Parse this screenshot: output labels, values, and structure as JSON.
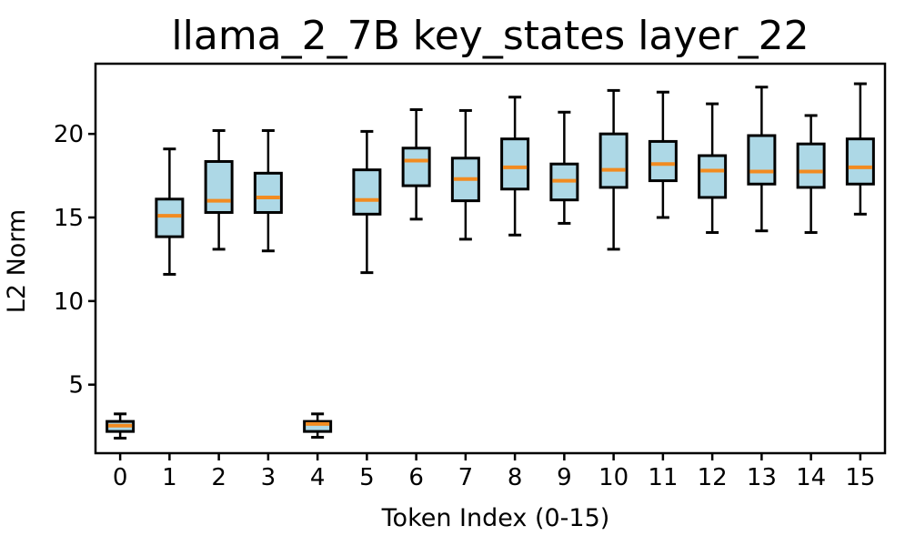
{
  "page": {
    "background": "#ffffff"
  },
  "chart_data": {
    "type": "boxplot",
    "title": "llama_2_7B key_states layer_22",
    "xlabel": "Token Index (0-15)",
    "ylabel": "L2 Norm",
    "categories": [
      "0",
      "1",
      "2",
      "3",
      "4",
      "5",
      "6",
      "7",
      "8",
      "9",
      "10",
      "11",
      "12",
      "13",
      "14",
      "15"
    ],
    "y_ticks": [
      5,
      10,
      15,
      20
    ],
    "ylim": [
      0.9,
      24.2
    ],
    "n_slots": 16,
    "grid": false,
    "legend": "none",
    "colors": {
      "box_fill": "#ADD8E6",
      "box_edge": "#000000",
      "median": "#F28B20",
      "whisker": "#000000",
      "axis": "#000000"
    },
    "series": [
      {
        "label": "0",
        "whislo": 1.8,
        "q1": 2.2,
        "med": 2.55,
        "q3": 2.8,
        "whishi": 3.25
      },
      {
        "label": "1",
        "whislo": 11.6,
        "q1": 13.85,
        "med": 15.1,
        "q3": 16.1,
        "whishi": 19.1
      },
      {
        "label": "2",
        "whislo": 13.1,
        "q1": 15.3,
        "med": 16.0,
        "q3": 18.35,
        "whishi": 20.2
      },
      {
        "label": "3",
        "whislo": 13.0,
        "q1": 15.3,
        "med": 16.2,
        "q3": 17.65,
        "whishi": 20.2
      },
      {
        "label": "4",
        "whislo": 1.85,
        "q1": 2.2,
        "med": 2.65,
        "q3": 2.8,
        "whishi": 3.25
      },
      {
        "label": "5",
        "whislo": 11.7,
        "q1": 15.2,
        "med": 16.05,
        "q3": 17.85,
        "whishi": 20.15
      },
      {
        "label": "6",
        "whislo": 14.9,
        "q1": 16.9,
        "med": 18.4,
        "q3": 19.15,
        "whishi": 21.45
      },
      {
        "label": "7",
        "whislo": 13.7,
        "q1": 16.0,
        "med": 17.3,
        "q3": 18.55,
        "whishi": 21.4
      },
      {
        "label": "8",
        "whislo": 13.95,
        "q1": 16.7,
        "med": 18.0,
        "q3": 19.7,
        "whishi": 22.2
      },
      {
        "label": "9",
        "whislo": 14.65,
        "q1": 16.05,
        "med": 17.2,
        "q3": 18.2,
        "whishi": 21.3
      },
      {
        "label": "10",
        "whislo": 13.1,
        "q1": 16.8,
        "med": 17.85,
        "q3": 20.0,
        "whishi": 22.6
      },
      {
        "label": "11",
        "whislo": 15.0,
        "q1": 17.2,
        "med": 18.2,
        "q3": 19.55,
        "whishi": 22.5
      },
      {
        "label": "12",
        "whislo": 14.1,
        "q1": 16.2,
        "med": 17.8,
        "q3": 18.7,
        "whishi": 21.8
      },
      {
        "label": "13",
        "whislo": 14.2,
        "q1": 17.0,
        "med": 17.75,
        "q3": 19.9,
        "whishi": 22.8
      },
      {
        "label": "14",
        "whislo": 14.1,
        "q1": 16.8,
        "med": 17.75,
        "q3": 19.4,
        "whishi": 21.1
      },
      {
        "label": "15",
        "whislo": 15.2,
        "q1": 17.0,
        "med": 18.0,
        "q3": 19.7,
        "whishi": 23.0
      }
    ]
  }
}
